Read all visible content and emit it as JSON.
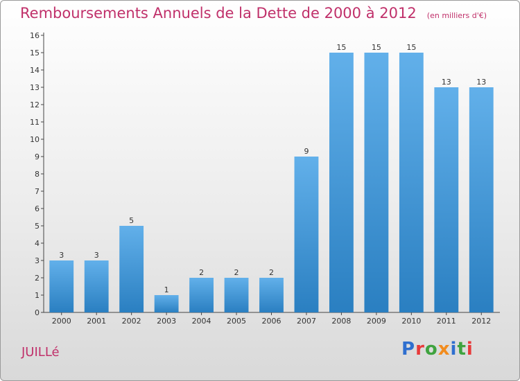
{
  "header": {
    "title": "Remboursements Annuels de la Dette de 2000 à 2012",
    "subtitle": "(en milliers d'€)"
  },
  "footer": {
    "town": "JUILLé",
    "brand_letters": [
      {
        "ch": "P",
        "color": "#2f6fcf"
      },
      {
        "ch": "r",
        "color": "#e83a3a"
      },
      {
        "ch": "o",
        "color": "#3fa33f"
      },
      {
        "ch": "x",
        "color": "#f28c1e"
      },
      {
        "ch": "i",
        "color": "#2f6fcf"
      },
      {
        "ch": "t",
        "color": "#3fa33f"
      },
      {
        "ch": "i",
        "color": "#e83a3a"
      }
    ]
  },
  "colors": {
    "bar_light": "#62b0ea",
    "bar_dark": "#2a7fc1",
    "accent_text": "#c0306a"
  },
  "chart_data": {
    "type": "bar",
    "title": "Remboursements Annuels de la Dette de 2000 à 2012",
    "subtitle": "(en milliers d'€)",
    "xlabel": "",
    "ylabel": "",
    "categories": [
      "2000",
      "2001",
      "2002",
      "2003",
      "2004",
      "2005",
      "2006",
      "2007",
      "2008",
      "2009",
      "2010",
      "2011",
      "2012"
    ],
    "values": [
      3,
      3,
      5,
      1,
      2,
      2,
      2,
      9,
      15,
      15,
      15,
      13,
      13
    ],
    "ylim": [
      0,
      16
    ],
    "yticks": [
      0,
      1,
      2,
      3,
      4,
      5,
      6,
      7,
      8,
      9,
      10,
      11,
      12,
      13,
      14,
      15,
      16
    ],
    "grid": false,
    "legend": "none"
  }
}
